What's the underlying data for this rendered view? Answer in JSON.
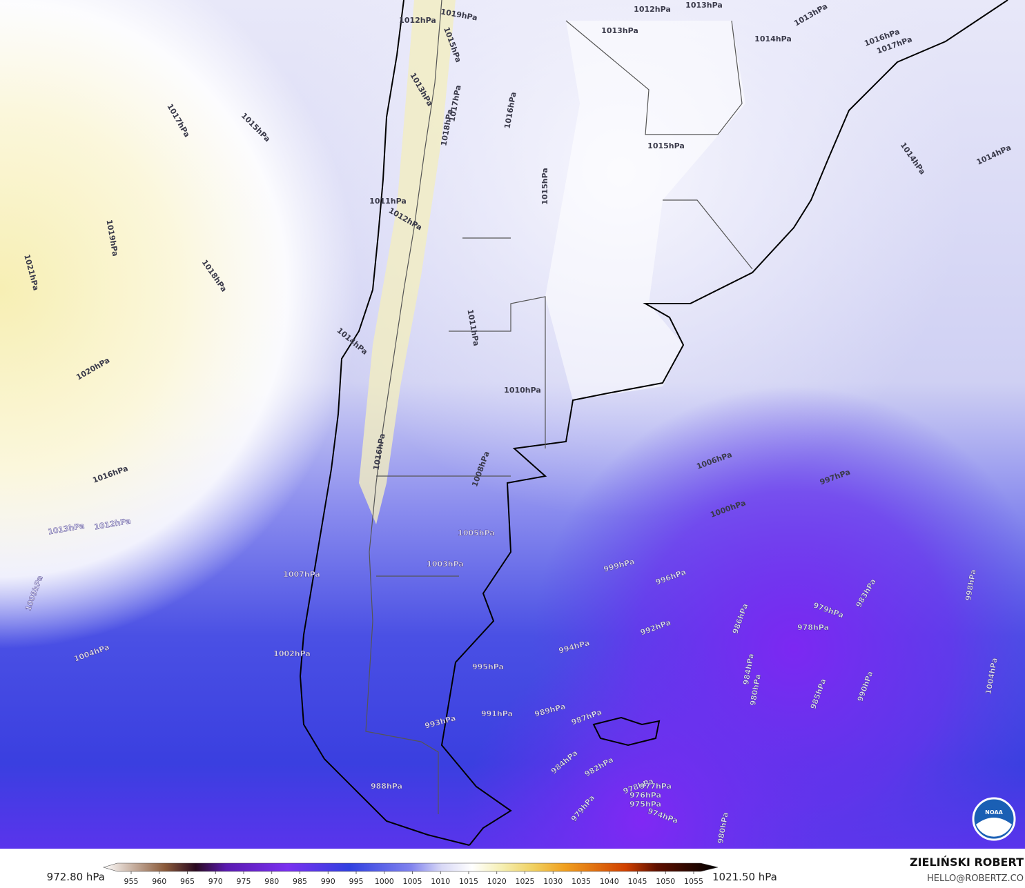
{
  "map": {
    "isobar_labels": [
      "1012hPa",
      "1019hPa",
      "1015hPa",
      "1013hPa",
      "1017hPa",
      "1015hPa",
      "1018hPa",
      "1017hPa",
      "1016hPa",
      "1012hPa",
      "1013hPa",
      "1013hPa",
      "1013hPa",
      "1014hPa",
      "1016hPa",
      "1017hPa",
      "1015hPa",
      "1014hPa",
      "1014hPa",
      "1015hPa",
      "1011hPa",
      "1012hPa",
      "1019hPa",
      "1021hPa",
      "1018hPa",
      "1020hPa",
      "1014hPa",
      "1011hPa",
      "1010hPa",
      "1016hPa",
      "1016hPa",
      "1008hPa",
      "1006hPa",
      "997hPa",
      "1013hPa",
      "1012hPa",
      "1000hPa",
      "1005hPa",
      "1003hPa",
      "999hPa",
      "996hPa",
      "1007hPa",
      "1009hPa",
      "979hPa",
      "983hPa",
      "998hPa",
      "986hPa",
      "978hPa",
      "992hPa",
      "994hPa",
      "1004hPa",
      "1002hPa",
      "984hPa",
      "980hPa",
      "995hPa",
      "985hPa",
      "990hPa",
      "1004hPa",
      "989hPa",
      "991hPa",
      "987hPa",
      "993hPa",
      "984hPa",
      "982hPa",
      "988hPa",
      "979hPa",
      "978hPa",
      "977hPa",
      "976hPa",
      "975hPa",
      "974hPa",
      "980hPa"
    ]
  },
  "colorbar": {
    "min_label": "972.80 hPa",
    "max_label": "1021.50 hPa",
    "ticks": [
      955,
      960,
      965,
      970,
      975,
      980,
      985,
      990,
      995,
      1000,
      1005,
      1010,
      1015,
      1020,
      1025,
      1030,
      1035,
      1040,
      1045,
      1050,
      1055
    ]
  },
  "credit": {
    "name": "ZIELIŃSKI ROBERT",
    "email": "HELLO@ROBERTZ.CO"
  },
  "logo": {
    "text": "NOAA"
  }
}
